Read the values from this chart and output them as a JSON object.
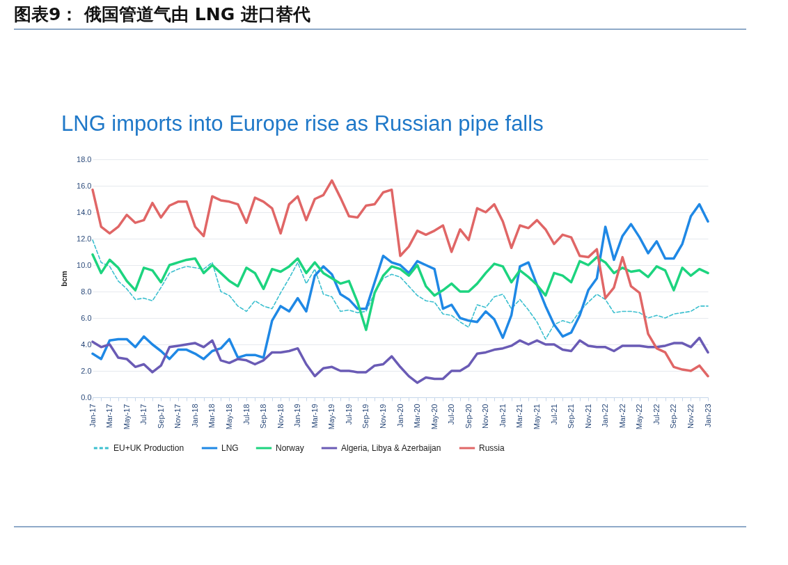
{
  "chart_data": {
    "type": "line",
    "title": "图表9： 俄国管道气由 LNG 进口替代",
    "subtitle": "LNG imports into Europe rise as Russian pipe falls",
    "ylabel": "bcm",
    "categories": [
      "Jan-17",
      null,
      "Mar-17",
      null,
      "May-17",
      null,
      "Jul-17",
      null,
      "Sep-17",
      null,
      "Nov-17",
      null,
      "Jan-18",
      null,
      "Mar-18",
      null,
      "May-18",
      null,
      "Jul-18",
      null,
      "Sep-18",
      null,
      "Nov-18",
      null,
      "Jan-19",
      null,
      "Mar-19",
      null,
      "May-19",
      null,
      "Jul-19",
      null,
      "Sep-19",
      null,
      "Nov-19",
      null,
      "Jan-20",
      null,
      "Mar-20",
      null,
      "May-20",
      null,
      "Jul-20",
      null,
      "Sep-20",
      null,
      "Nov-20",
      null,
      "Jan-21",
      null,
      "Mar-21",
      null,
      "May-21",
      null,
      "Jul-21",
      null,
      "Sep-21",
      null,
      "Nov-21",
      null,
      "Jan-22",
      null,
      "Mar-22",
      null,
      "May-22",
      null,
      "Jul-22",
      null,
      "Sep-22",
      null,
      "Nov-22",
      null,
      "Jan-23"
    ],
    "series": [
      {
        "name": "EU+UK Production",
        "color": "#3bbfcf",
        "line_style": "dashed",
        "values": [
          11.9,
          10.2,
          9.9,
          8.8,
          8.2,
          7.4,
          7.5,
          7.3,
          8.3,
          9.4,
          9.7,
          9.9,
          9.8,
          9.7,
          10.2,
          8.0,
          7.7,
          6.9,
          6.5,
          7.3,
          6.9,
          6.7,
          7.9,
          9.0,
          10.2,
          8.6,
          9.7,
          7.8,
          7.6,
          6.5,
          6.6,
          6.4,
          6.5,
          7.9,
          9.0,
          9.3,
          9.1,
          8.4,
          7.7,
          7.3,
          7.2,
          6.3,
          6.2,
          5.7,
          5.3,
          7.0,
          6.8,
          7.6,
          7.8,
          6.7,
          7.4,
          6.6,
          5.7,
          4.4,
          5.5,
          5.8,
          5.6,
          6.5,
          7.2,
          7.8,
          7.4,
          6.4,
          6.5,
          6.5,
          6.4,
          6.0,
          6.2,
          6.0,
          6.3,
          6.4,
          6.5,
          6.9,
          6.9
        ]
      },
      {
        "name": "LNG",
        "color": "#1f88e5",
        "line_style": "solid",
        "values": [
          3.3,
          2.9,
          4.3,
          4.4,
          4.4,
          3.8,
          4.6,
          4.0,
          3.5,
          2.9,
          3.6,
          3.6,
          3.3,
          2.9,
          3.5,
          3.7,
          4.4,
          3.0,
          3.2,
          3.2,
          3.0,
          5.8,
          6.9,
          6.5,
          7.5,
          6.5,
          9.2,
          9.9,
          9.3,
          7.8,
          7.4,
          6.7,
          6.7,
          8.7,
          10.7,
          10.2,
          10.0,
          9.4,
          10.3,
          10.0,
          9.7,
          6.7,
          7.0,
          6.0,
          5.8,
          5.7,
          6.5,
          5.9,
          4.5,
          6.2,
          9.9,
          10.2,
          8.5,
          6.9,
          5.5,
          4.6,
          4.9,
          6.2,
          8.1,
          9.0,
          12.9,
          10.4,
          12.2,
          13.1,
          12.1,
          10.9,
          11.8,
          10.5,
          10.5,
          11.6,
          13.7,
          14.6,
          13.3
        ]
      },
      {
        "name": "Norway",
        "color": "#1dd47f",
        "line_style": "solid",
        "values": [
          10.8,
          9.4,
          10.4,
          9.8,
          8.8,
          8.1,
          9.8,
          9.6,
          8.7,
          10.0,
          10.2,
          10.4,
          10.5,
          9.4,
          10.0,
          9.4,
          8.8,
          8.4,
          9.8,
          9.4,
          8.2,
          9.7,
          9.5,
          9.9,
          10.5,
          9.4,
          10.2,
          9.4,
          9.0,
          8.6,
          8.8,
          7.2,
          5.1,
          7.9,
          9.2,
          9.9,
          9.7,
          9.2,
          10.0,
          8.4,
          7.7,
          8.1,
          8.6,
          8.0,
          8.0,
          8.6,
          9.4,
          10.1,
          9.9,
          8.7,
          9.6,
          9.1,
          8.5,
          7.7,
          9.4,
          9.2,
          8.7,
          10.3,
          10.0,
          10.6,
          10.2,
          9.4,
          9.8,
          9.5,
          9.6,
          9.1,
          9.9,
          9.6,
          8.1,
          9.8,
          9.2,
          9.7,
          9.4
        ]
      },
      {
        "name": "Algeria, Libya & Azerbaijan",
        "color": "#6a5bb5",
        "line_style": "solid",
        "values": [
          4.2,
          3.8,
          4.0,
          3.0,
          2.9,
          2.3,
          2.5,
          1.9,
          2.4,
          3.8,
          3.9,
          4.0,
          4.1,
          3.8,
          4.3,
          2.8,
          2.6,
          2.9,
          2.8,
          2.5,
          2.8,
          3.4,
          3.4,
          3.5,
          3.7,
          2.5,
          1.6,
          2.2,
          2.3,
          2.0,
          2.0,
          1.9,
          1.9,
          2.4,
          2.5,
          3.1,
          2.3,
          1.6,
          1.1,
          1.5,
          1.4,
          1.4,
          2.0,
          2.0,
          2.4,
          3.3,
          3.4,
          3.6,
          3.7,
          3.9,
          4.3,
          4.0,
          4.3,
          4.0,
          4.0,
          3.6,
          3.5,
          4.3,
          3.9,
          3.8,
          3.8,
          3.5,
          3.9,
          3.9,
          3.9,
          3.8,
          3.8,
          3.9,
          4.1,
          4.1,
          3.8,
          4.5,
          3.4
        ]
      },
      {
        "name": "Russia",
        "color": "#e06666",
        "line_style": "solid",
        "values": [
          15.7,
          12.9,
          12.4,
          12.9,
          13.8,
          13.2,
          13.4,
          14.7,
          13.6,
          14.5,
          14.8,
          14.8,
          12.9,
          12.2,
          15.2,
          14.9,
          14.8,
          14.6,
          13.2,
          15.1,
          14.8,
          14.3,
          12.4,
          14.6,
          15.2,
          13.4,
          15.0,
          15.3,
          16.4,
          15.1,
          13.7,
          13.6,
          14.5,
          14.6,
          15.5,
          15.7,
          10.7,
          11.4,
          12.6,
          12.3,
          12.6,
          13.0,
          11.0,
          12.7,
          11.9,
          14.3,
          14.0,
          14.6,
          13.3,
          11.3,
          13.0,
          12.8,
          13.4,
          12.7,
          11.6,
          12.3,
          12.1,
          10.7,
          10.6,
          11.2,
          7.5,
          8.3,
          10.6,
          8.4,
          7.9,
          4.8,
          3.7,
          3.4,
          2.3,
          2.1,
          2.0,
          2.4,
          1.6
        ]
      }
    ],
    "ylim": [
      0,
      18
    ],
    "yticks": [
      {
        "value": 0,
        "label": "0.0"
      },
      {
        "value": 2,
        "label": "2.0"
      },
      {
        "value": 4,
        "label": "4.0"
      },
      {
        "value": 6,
        "label": "6.0"
      },
      {
        "value": 8,
        "label": "8.0"
      },
      {
        "value": 10,
        "label": "10.0"
      },
      {
        "value": 12,
        "label": "12.0"
      },
      {
        "value": 14,
        "label": "14.0"
      },
      {
        "value": 16,
        "label": "16.0"
      },
      {
        "value": 18,
        "label": "18.0"
      }
    ],
    "grid": "y",
    "legend": "bottom"
  }
}
